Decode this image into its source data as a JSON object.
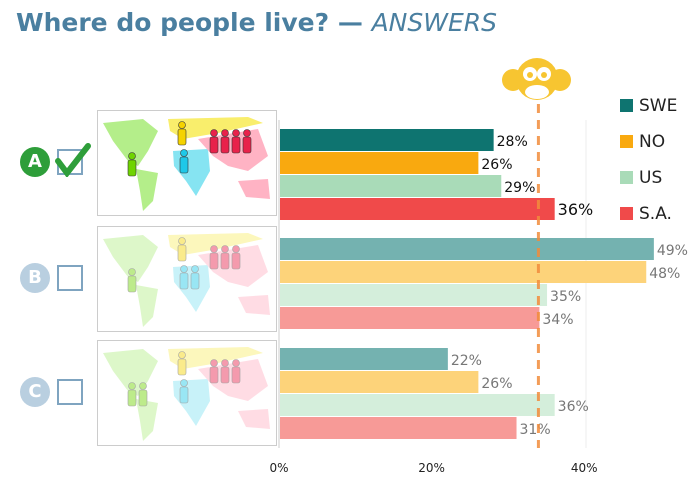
{
  "title": {
    "main": "Where do people live? —",
    "emphasis": "ANSWERS"
  },
  "options": [
    {
      "letter": "A",
      "checked": true,
      "color": "#2e9e3a",
      "people": {
        "americas": 1,
        "europe": 1,
        "africa": 1,
        "asia": 4
      }
    },
    {
      "letter": "B",
      "checked": false,
      "color": "#b9cfe0",
      "people": {
        "americas": 1,
        "europe": 1,
        "africa": 2,
        "asia": 3
      }
    },
    {
      "letter": "C",
      "checked": false,
      "color": "#b9cfe0",
      "people": {
        "americas": 2,
        "europe": 1,
        "africa": 1,
        "asia": 3
      }
    }
  ],
  "mascot": "monkey-face-icon",
  "chart_data": {
    "type": "bar",
    "orientation": "horizontal",
    "categories": [
      "A",
      "B",
      "C"
    ],
    "series": [
      {
        "name": "SWE",
        "color": "#0e7470",
        "faded": "#74b2b0",
        "values": [
          28,
          49,
          22
        ]
      },
      {
        "name": "NO",
        "color": "#f9a90f",
        "faded": "#fdd37a",
        "values": [
          26,
          48,
          26
        ]
      },
      {
        "name": "US",
        "color": "#a9dbb8",
        "faded": "#d4eedb",
        "values": [
          29,
          35,
          36
        ]
      },
      {
        "name": "S.A.",
        "color": "#f04a4a",
        "faded": "#f79a97",
        "values": [
          36,
          34,
          31
        ]
      }
    ],
    "highlight_category": "A",
    "reference_line": {
      "value": 34,
      "color": "#f28c3c",
      "style": "dashed"
    },
    "xticks": [
      "0%",
      "20%",
      "40%"
    ],
    "xtick_values": [
      0,
      20,
      40
    ],
    "xlim": [
      0,
      55
    ],
    "legend_position": "right"
  }
}
